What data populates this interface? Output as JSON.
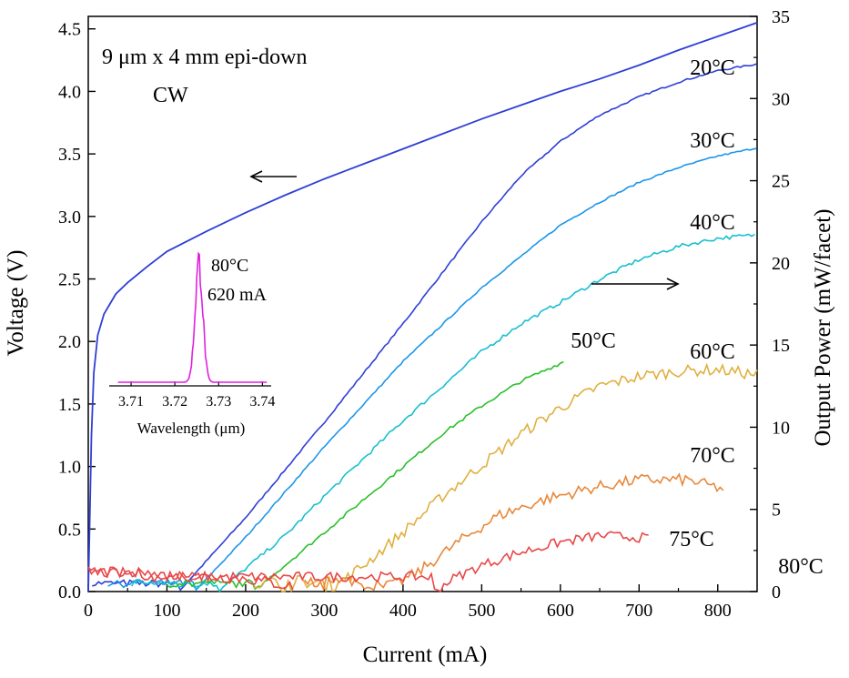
{
  "chart_data": {
    "type": "line",
    "x_axis": {
      "label": "Current (mA)",
      "range": [
        0,
        850
      ],
      "ticks": [
        0,
        100,
        200,
        300,
        400,
        500,
        600,
        700,
        800
      ]
    },
    "y_left": {
      "label": "Voltage (V)",
      "range": [
        0,
        4.6
      ],
      "ticks": [
        "0.0",
        "0.5",
        "1.0",
        "1.5",
        "2.0",
        "2.5",
        "3.0",
        "3.5",
        "4.0",
        "4.5"
      ]
    },
    "y_right": {
      "label": "Output Power (mW/facet)",
      "range": [
        0,
        35
      ],
      "ticks": [
        "0",
        "5",
        "10",
        "15",
        "20",
        "25",
        "30",
        "35"
      ]
    },
    "annotations": {
      "device": "9 μm x 4 mm epi-down",
      "mode": "CW"
    },
    "voltage_curve": {
      "axis": "left",
      "color": "#2f3fd6",
      "points": [
        [
          0,
          0
        ],
        [
          2,
          0.6
        ],
        [
          4,
          1.25
        ],
        [
          7,
          1.75
        ],
        [
          12,
          2.05
        ],
        [
          20,
          2.22
        ],
        [
          35,
          2.38
        ],
        [
          50,
          2.47
        ],
        [
          75,
          2.6
        ],
        [
          100,
          2.72
        ],
        [
          150,
          2.88
        ],
        [
          200,
          3.03
        ],
        [
          250,
          3.17
        ],
        [
          300,
          3.3
        ],
        [
          350,
          3.42
        ],
        [
          400,
          3.54
        ],
        [
          450,
          3.66
        ],
        [
          500,
          3.78
        ],
        [
          550,
          3.89
        ],
        [
          600,
          4.0
        ],
        [
          650,
          4.1
        ],
        [
          700,
          4.21
        ],
        [
          750,
          4.33
        ],
        [
          800,
          4.44
        ],
        [
          850,
          4.55
        ]
      ]
    },
    "series": [
      {
        "name": "20°C",
        "color": "#2f3fd6",
        "threshold": 115,
        "points": [
          [
            115,
            0
          ],
          [
            200,
            4.5
          ],
          [
            300,
            10.3
          ],
          [
            400,
            16.3
          ],
          [
            450,
            19.4
          ],
          [
            500,
            22.5
          ],
          [
            550,
            25.3
          ],
          [
            600,
            27.4
          ],
          [
            650,
            29.0
          ],
          [
            700,
            30.1
          ],
          [
            750,
            31.0
          ],
          [
            800,
            31.7
          ],
          [
            850,
            32.1
          ]
        ]
      },
      {
        "name": "30°C",
        "color": "#1e96e8",
        "threshold": 135,
        "points": [
          [
            135,
            0
          ],
          [
            200,
            3.3
          ],
          [
            300,
            8.8
          ],
          [
            400,
            14.0
          ],
          [
            500,
            18.5
          ],
          [
            600,
            22.3
          ],
          [
            650,
            23.7
          ],
          [
            700,
            24.9
          ],
          [
            750,
            25.8
          ],
          [
            800,
            26.5
          ],
          [
            850,
            27.0
          ]
        ]
      },
      {
        "name": "40°C",
        "color": "#18bfcf",
        "threshold": 165,
        "points": [
          [
            165,
            0
          ],
          [
            250,
            3.4
          ],
          [
            300,
            5.8
          ],
          [
            400,
            10.4
          ],
          [
            500,
            14.6
          ],
          [
            550,
            16.3
          ],
          [
            600,
            17.6
          ],
          [
            650,
            19.0
          ],
          [
            700,
            20.2
          ],
          [
            750,
            21.0
          ],
          [
            800,
            21.5
          ],
          [
            850,
            21.7
          ]
        ]
      },
      {
        "name": "50°C",
        "color": "#2bbf2b",
        "threshold": 210,
        "points": [
          [
            210,
            0
          ],
          [
            300,
            3.6
          ],
          [
            350,
            5.6
          ],
          [
            400,
            7.6
          ],
          [
            450,
            9.6
          ],
          [
            500,
            11.3
          ],
          [
            550,
            12.8
          ],
          [
            605,
            14.0
          ]
        ]
      },
      {
        "name": "60°C",
        "color": "#e0b040",
        "threshold": 320,
        "points": [
          [
            320,
            0.5
          ],
          [
            360,
            2.0
          ],
          [
            400,
            3.6
          ],
          [
            450,
            5.8
          ],
          [
            500,
            7.7
          ],
          [
            550,
            9.6
          ],
          [
            600,
            11.2
          ],
          [
            650,
            12.5
          ],
          [
            700,
            13.1
          ],
          [
            750,
            13.4
          ],
          [
            800,
            13.5
          ],
          [
            850,
            13.2
          ]
        ]
      },
      {
        "name": "70°C",
        "color": "#e8883a",
        "threshold": 385,
        "points": [
          [
            385,
            0.3
          ],
          [
            420,
            1.2
          ],
          [
            470,
            3.0
          ],
          [
            520,
            4.6
          ],
          [
            580,
            5.6
          ],
          [
            640,
            6.3
          ],
          [
            700,
            6.8
          ],
          [
            760,
            6.8
          ],
          [
            810,
            6.2
          ]
        ]
      },
      {
        "name": "75°C",
        "color": "#e84848",
        "threshold": 440,
        "points": [
          [
            440,
            0.0
          ],
          [
            460,
            0.7
          ],
          [
            500,
            1.6
          ],
          [
            550,
            2.4
          ],
          [
            600,
            3.0
          ],
          [
            650,
            3.4
          ],
          [
            700,
            3.3
          ],
          [
            715,
            3.2
          ]
        ]
      },
      {
        "name": "80°C",
        "color": "#e84848",
        "threshold": null,
        "points": [
          [
            0,
            1.2
          ],
          [
            100,
            1.0
          ],
          [
            200,
            0.8
          ],
          [
            260,
            0.3
          ]
        ]
      }
    ],
    "inset": {
      "x_label": "Wavelength (μm)",
      "x_range": [
        3.705,
        3.742
      ],
      "x_ticks": [
        "3.71",
        "3.72",
        "3.73",
        "3.74"
      ],
      "color": "#e020e0",
      "temperature": "80°C",
      "current": "620 mA",
      "peak": {
        "center": 3.7255,
        "width": 0.0025,
        "height": 1.0
      }
    }
  }
}
